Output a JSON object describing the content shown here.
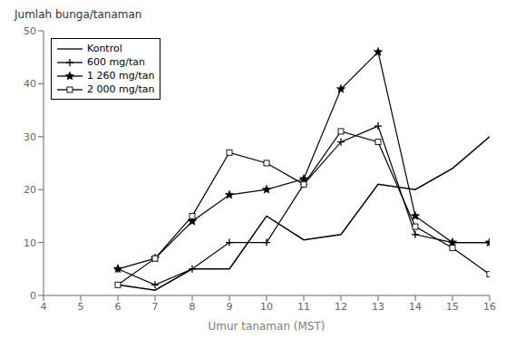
{
  "chart_data": {
    "type": "line",
    "ylabel": "Jumlah bunga/tanaman",
    "xlabel": "Umur tanaman (MST)",
    "x": [
      6,
      7,
      8,
      9,
      10,
      11,
      12,
      13,
      14,
      15,
      16
    ],
    "series": [
      {
        "name": "Kontrol",
        "color": "#000000",
        "marker": "none",
        "line_style": "solid",
        "values": [
          2,
          1,
          5,
          5,
          15,
          10.5,
          11.5,
          21,
          20,
          24,
          30
        ]
      },
      {
        "name": "600 mg/tan",
        "color": "#000000",
        "marker": "plus",
        "line_style": "solid",
        "values": [
          5,
          2,
          5,
          10,
          10,
          21,
          29,
          32,
          11.5,
          10,
          10
        ]
      },
      {
        "name": "1 260 mg/tan",
        "color": "#000000",
        "marker": "star",
        "line_style": "solid",
        "values": [
          5,
          7,
          14,
          19,
          20,
          22,
          39,
          46,
          15,
          10,
          10
        ]
      },
      {
        "name": "2 000 mg/tan",
        "color": "#000000",
        "marker": "square",
        "line_style": "solid",
        "values": [
          2,
          7,
          15,
          27,
          25,
          21,
          31,
          29,
          13,
          9,
          4
        ]
      }
    ],
    "xlim": [
      4,
      16
    ],
    "ylim": [
      0,
      50
    ],
    "xticks": [
      4,
      5,
      6,
      7,
      8,
      9,
      10,
      11,
      12,
      13,
      14,
      15,
      16
    ],
    "yticks": [
      0,
      10,
      20,
      30,
      40,
      50
    ],
    "grid": false,
    "legend": "upper left"
  }
}
